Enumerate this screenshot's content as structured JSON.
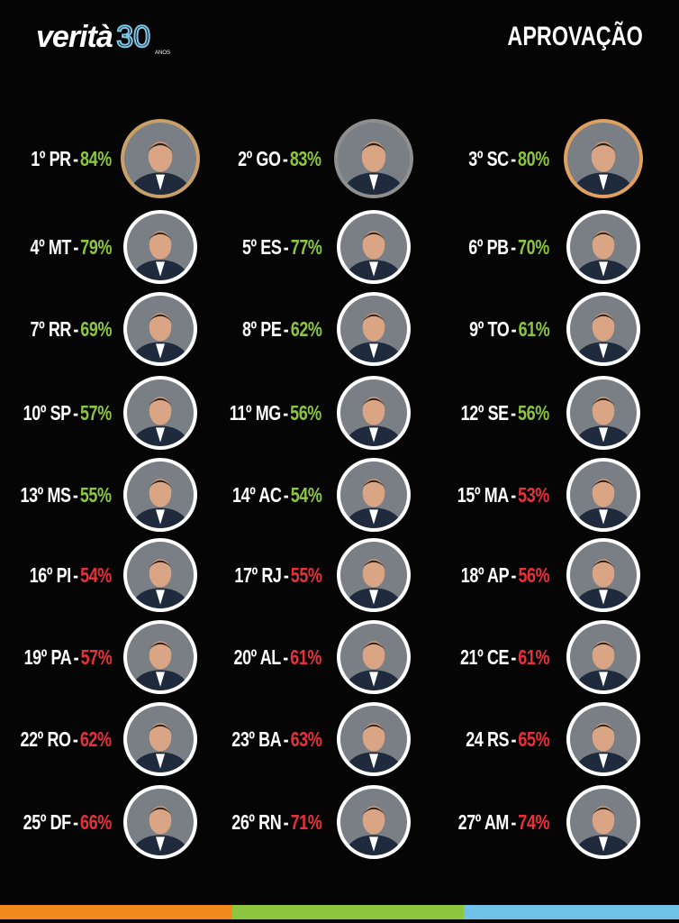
{
  "header": {
    "logo": "verità",
    "logo_number": "30",
    "logo_sub": "ANOS",
    "title": "APROVAÇÃO"
  },
  "separator": "-",
  "entries": [
    {
      "rank": "1º PR",
      "value": "84%",
      "color": "#8cc63f"
    },
    {
      "rank": "2º GO",
      "value": "83%",
      "color": "#8cc63f"
    },
    {
      "rank": "3º SC",
      "value": "80%",
      "color": "#8cc63f"
    },
    {
      "rank": "4º MT",
      "value": "79%",
      "color": "#8cc63f"
    },
    {
      "rank": "5º ES",
      "value": "77%",
      "color": "#8cc63f"
    },
    {
      "rank": "6º PB",
      "value": "70%",
      "color": "#8cc63f"
    },
    {
      "rank": "7º RR",
      "value": "69%",
      "color": "#8cc63f"
    },
    {
      "rank": "8º PE",
      "value": "62%",
      "color": "#8cc63f"
    },
    {
      "rank": "9º TO",
      "value": "61%",
      "color": "#8cc63f"
    },
    {
      "rank": "10º SP",
      "value": "57%",
      "color": "#8cc63f"
    },
    {
      "rank": "11º MG",
      "value": "56%",
      "color": "#8cc63f"
    },
    {
      "rank": "12º SE",
      "value": "56%",
      "color": "#8cc63f"
    },
    {
      "rank": "13º MS",
      "value": "55%",
      "color": "#8cc63f"
    },
    {
      "rank": "14º AC",
      "value": "54%",
      "color": "#8cc63f"
    },
    {
      "rank": "15º MA",
      "value": "53%",
      "color": "#e8303a"
    },
    {
      "rank": "16º PI",
      "value": "54%",
      "color": "#e8303a"
    },
    {
      "rank": "17º RJ",
      "value": "55%",
      "color": "#e8303a"
    },
    {
      "rank": "18º AP",
      "value": "56%",
      "color": "#e8303a"
    },
    {
      "rank": "19º PA",
      "value": "57%",
      "color": "#e8303a"
    },
    {
      "rank": "20º AL",
      "value": "61%",
      "color": "#e8303a"
    },
    {
      "rank": "21º CE",
      "value": "61%",
      "color": "#e8303a"
    },
    {
      "rank": "22º RO",
      "value": "62%",
      "color": "#e8303a"
    },
    {
      "rank": "23º BA",
      "value": "63%",
      "color": "#e8303a"
    },
    {
      "rank": "24 RS",
      "value": "65%",
      "color": "#e8303a"
    },
    {
      "rank": "25º DF",
      "value": "66%",
      "color": "#e8303a"
    },
    {
      "rank": "26º RN",
      "value": "71%",
      "color": "#e8303a"
    },
    {
      "rank": "27º AM",
      "value": "74%",
      "color": "#e8303a"
    }
  ]
}
